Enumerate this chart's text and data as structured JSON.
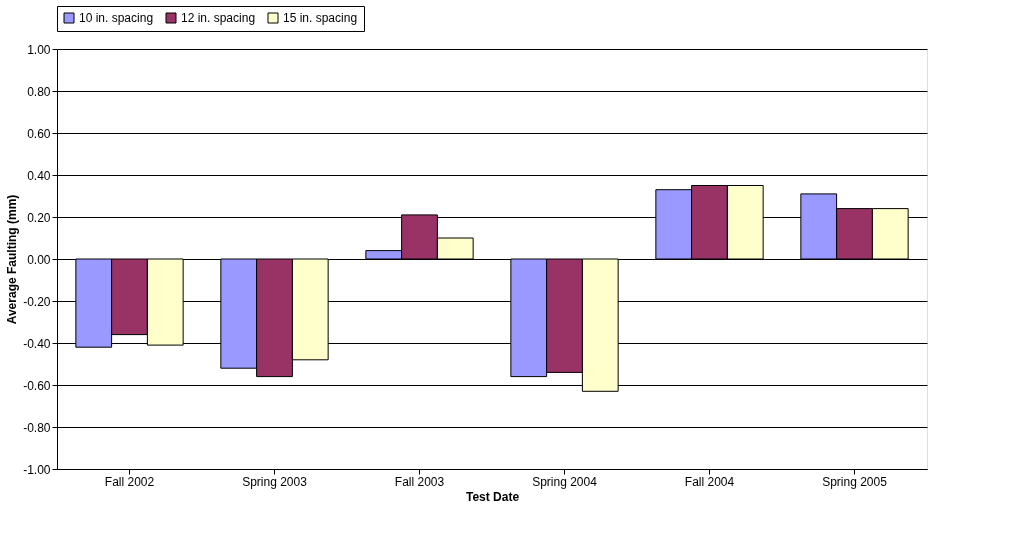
{
  "chart_data": {
    "type": "bar",
    "xlabel": "Test Date",
    "ylabel": "Average Faulting (mm)",
    "categories": [
      "Fall 2002",
      "Spring 2003",
      "Fall 2003",
      "Spring 2004",
      "Fall 2004",
      "Spring 2005"
    ],
    "series": [
      {
        "name": "10 in. spacing",
        "color": "#9999ff",
        "values": [
          -0.42,
          -0.52,
          0.04,
          -0.56,
          0.33,
          0.31
        ]
      },
      {
        "name": "12 in. spacing",
        "color": "#993366",
        "values": [
          -0.36,
          -0.56,
          0.21,
          -0.54,
          0.35,
          0.24
        ]
      },
      {
        "name": "15 in. spacing",
        "color": "#ffffcc",
        "values": [
          -0.41,
          -0.48,
          0.1,
          -0.63,
          0.35,
          0.24
        ]
      }
    ],
    "ylim": [
      -1.0,
      1.0
    ],
    "yticks": [
      {
        "value": 1.0,
        "label": "1.00"
      },
      {
        "value": 0.8,
        "label": "0.80"
      },
      {
        "value": 0.6,
        "label": "0.60"
      },
      {
        "value": 0.4,
        "label": "0.40"
      },
      {
        "value": 0.2,
        "label": "0.20"
      },
      {
        "value": 0.0,
        "label": "0.00"
      },
      {
        "value": -0.2,
        "label": "-0.20"
      },
      {
        "value": -0.4,
        "label": "-0.40"
      },
      {
        "value": -0.6,
        "label": "-0.60"
      },
      {
        "value": -0.8,
        "label": "-0.80"
      },
      {
        "value": -1.0,
        "label": "-1.00"
      }
    ],
    "grid": "y",
    "legend": "top"
  }
}
